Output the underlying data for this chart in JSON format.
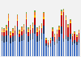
{
  "quarters": 36,
  "series": {
    "Apartment": [
      55,
      50,
      52,
      75,
      48,
      52,
      55,
      78,
      52,
      55,
      58,
      80,
      54,
      58,
      60,
      82,
      54,
      56,
      60,
      80,
      38,
      32,
      36,
      55,
      42,
      48,
      55,
      82,
      52,
      60,
      55,
      62,
      42,
      46,
      42,
      50
    ],
    "Office": [
      20,
      22,
      24,
      30,
      18,
      20,
      22,
      28,
      18,
      20,
      22,
      30,
      20,
      22,
      24,
      32,
      20,
      22,
      24,
      30,
      10,
      8,
      10,
      16,
      12,
      14,
      16,
      24,
      12,
      16,
      14,
      18,
      10,
      12,
      10,
      12
    ],
    "Industrial": [
      12,
      14,
      16,
      22,
      11,
      13,
      15,
      20,
      12,
      14,
      16,
      22,
      13,
      15,
      17,
      24,
      14,
      15,
      17,
      24,
      10,
      10,
      12,
      18,
      16,
      20,
      25,
      40,
      95,
      55,
      35,
      38,
      20,
      22,
      18,
      22
    ],
    "Hotel": [
      5,
      5,
      6,
      8,
      4,
      5,
      5,
      7,
      4,
      5,
      6,
      8,
      5,
      5,
      6,
      8,
      5,
      5,
      6,
      8,
      2,
      2,
      2,
      4,
      3,
      4,
      5,
      7,
      4,
      5,
      4,
      5,
      3,
      3,
      3,
      4
    ],
    "Retail": [
      8,
      8,
      10,
      14,
      7,
      8,
      10,
      13,
      8,
      9,
      10,
      14,
      8,
      9,
      10,
      14,
      8,
      9,
      9,
      13,
      4,
      4,
      4,
      7,
      5,
      6,
      7,
      10,
      5,
      7,
      6,
      7,
      4,
      5,
      4,
      5
    ],
    "Other": [
      3,
      3,
      4,
      5,
      3,
      3,
      4,
      5,
      3,
      3,
      4,
      5,
      3,
      3,
      4,
      5,
      3,
      3,
      3,
      5,
      2,
      2,
      2,
      3,
      2,
      3,
      3,
      5,
      3,
      4,
      3,
      4,
      2,
      2,
      2,
      3
    ]
  },
  "colors": {
    "Apartment": "#4472c4",
    "Office": "#1f3864",
    "Industrial": "#c00000",
    "Hotel": "#ffc000",
    "Retail": "#ed7d31",
    "Other": "#70ad47"
  },
  "ylim": [
    0,
    200
  ],
  "background_color": "#f2f2f2",
  "plot_background": "#f2f2f2",
  "grid_color": "#ffffff",
  "bar_width": 0.55
}
